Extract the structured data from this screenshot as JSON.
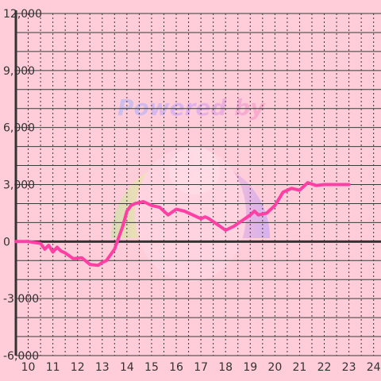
{
  "chart_data": {
    "type": "line",
    "title": "",
    "xlabel": "",
    "ylabel": "",
    "xlim": [
      9.5,
      24.3
    ],
    "ylim": [
      -6000,
      12000
    ],
    "x_ticks": [
      10,
      11,
      12,
      13,
      14,
      15,
      16,
      17,
      18,
      19,
      20,
      21,
      22,
      23,
      24
    ],
    "y_ticks": [
      -6000,
      -3000,
      0,
      3000,
      6000,
      9000,
      12000
    ],
    "y_tick_labels": [
      "-6,000",
      "-3,000",
      "0",
      "3,000",
      "6,000",
      "9,000",
      "12,000"
    ],
    "grid": true,
    "series": [
      {
        "x": [
          9.5,
          10.0,
          10.5,
          10.67,
          10.83,
          11.0,
          11.17,
          11.33,
          11.5,
          11.83,
          12.17,
          12.5,
          12.83,
          13.0,
          13.17,
          13.5,
          13.83,
          14.0,
          14.17,
          14.33,
          14.67,
          15.0,
          15.33,
          15.67,
          16.0,
          16.33,
          16.67,
          17.0,
          17.17,
          17.33,
          17.67,
          18.0,
          18.33,
          18.67,
          19.0,
          19.17,
          19.33,
          19.67,
          20.0,
          20.33,
          20.67,
          21.0,
          21.33,
          21.67,
          22.0,
          22.33,
          22.67,
          23.0
        ],
        "y": [
          0,
          0,
          -100,
          -400,
          -200,
          -550,
          -300,
          -500,
          -600,
          -900,
          -850,
          -1200,
          -1250,
          -1100,
          -1000,
          -400,
          800,
          1600,
          1900,
          2000,
          2100,
          1900,
          1800,
          1400,
          1700,
          1600,
          1400,
          1200,
          1300,
          1200,
          900,
          600,
          800,
          1100,
          1400,
          1600,
          1400,
          1500,
          1900,
          2600,
          2800,
          2700,
          3100,
          2950,
          3000,
          3000,
          3000,
          3000
        ],
        "color": "#ff3fa4"
      }
    ],
    "colors": {
      "background": "#ffccd9",
      "grid": "#3a3a3a",
      "axis": "#333333",
      "line": "#ff3fa4"
    }
  }
}
